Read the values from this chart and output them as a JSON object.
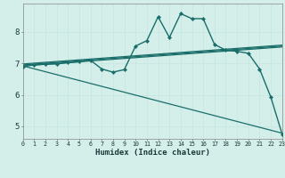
{
  "xlabel": "Humidex (Indice chaleur)",
  "background_color": "#d4eeea",
  "grid_color": "#c0e0dc",
  "line_color": "#1a6e6a",
  "x_ticks": [
    0,
    1,
    2,
    3,
    4,
    5,
    6,
    7,
    8,
    9,
    10,
    11,
    12,
    13,
    14,
    15,
    16,
    17,
    18,
    19,
    20,
    21,
    22,
    23
  ],
  "y_ticks": [
    5,
    6,
    7,
    8
  ],
  "xlim": [
    0,
    23
  ],
  "ylim": [
    4.6,
    8.9
  ],
  "main_series": {
    "x": [
      0,
      1,
      2,
      3,
      4,
      5,
      6,
      7,
      8,
      9,
      10,
      11,
      12,
      13,
      14,
      15,
      16,
      17,
      18,
      19,
      20,
      21,
      22,
      23
    ],
    "y": [
      6.9,
      6.95,
      6.97,
      6.98,
      7.02,
      7.05,
      7.1,
      6.82,
      6.72,
      6.8,
      7.55,
      7.72,
      8.48,
      7.82,
      8.58,
      8.42,
      8.42,
      7.6,
      7.42,
      7.38,
      7.32,
      6.82,
      5.92,
      4.75
    ]
  },
  "straight_lines": [
    {
      "x": [
        0,
        23
      ],
      "y": [
        6.92,
        7.52
      ]
    },
    {
      "x": [
        0,
        23
      ],
      "y": [
        6.95,
        7.55
      ]
    },
    {
      "x": [
        0,
        23
      ],
      "y": [
        6.98,
        7.58
      ]
    }
  ],
  "diagonal_line": {
    "x": [
      0,
      23
    ],
    "y": [
      6.92,
      4.78
    ]
  }
}
